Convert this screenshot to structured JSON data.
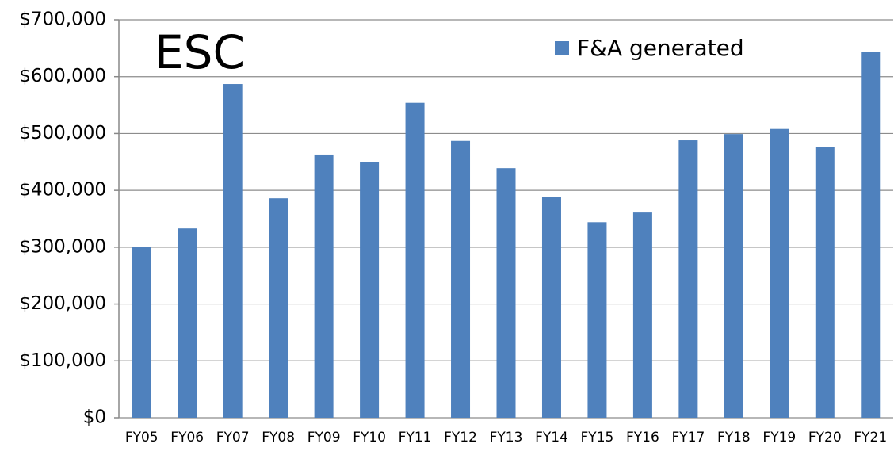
{
  "chart_data": {
    "type": "bar",
    "title": "ESC",
    "categories": [
      "FY05",
      "FY06",
      "FY07",
      "FY08",
      "FY09",
      "FY10",
      "FY11",
      "FY12",
      "FY13",
      "FY14",
      "FY15",
      "FY16",
      "FY17",
      "FY18",
      "FY19",
      "FY20",
      "FY21"
    ],
    "series": [
      {
        "name": "F&A generated",
        "color": "#4f81bd",
        "values": [
          300000,
          333000,
          587000,
          386000,
          463000,
          449000,
          554000,
          487000,
          439000,
          389000,
          344000,
          361000,
          488000,
          499000,
          508000,
          476000,
          643000
        ]
      }
    ],
    "ylim": [
      0,
      700000
    ],
    "yticks": [
      {
        "value": 0,
        "label": "$0"
      },
      {
        "value": 100000,
        "label": "$100,000"
      },
      {
        "value": 200000,
        "label": "$200,000"
      },
      {
        "value": 300000,
        "label": "$300,000"
      },
      {
        "value": 400000,
        "label": "$400,000"
      },
      {
        "value": 500000,
        "label": "$500,000"
      },
      {
        "value": 600000,
        "label": "$600,000"
      },
      {
        "value": 700000,
        "label": "$700,000"
      }
    ],
    "grid": true,
    "legend": "upper right"
  }
}
